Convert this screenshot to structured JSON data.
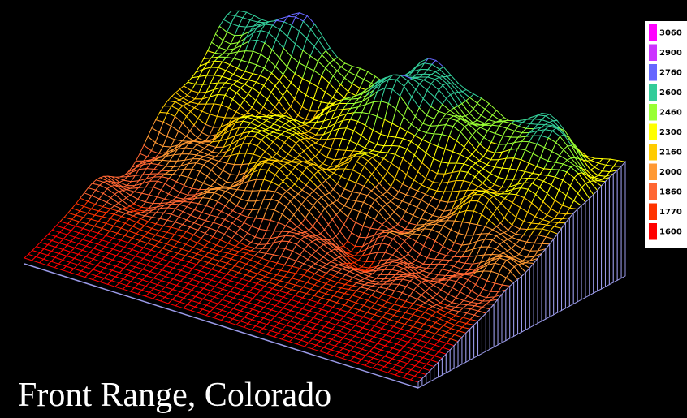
{
  "chart_data": {
    "type": "surface",
    "title": "Front Range, Colorado",
    "legend": {
      "values": [
        3060,
        2900,
        2760,
        2600,
        2460,
        2300,
        2160,
        2000,
        1860,
        1770,
        1600
      ],
      "colors": [
        "#ff00ff",
        "#cc33ff",
        "#6666ff",
        "#33cc99",
        "#99ff33",
        "#ffff00",
        "#ffcc00",
        "#ff9933",
        "#ff6633",
        "#ff3300",
        "#ff0000"
      ]
    }
  }
}
